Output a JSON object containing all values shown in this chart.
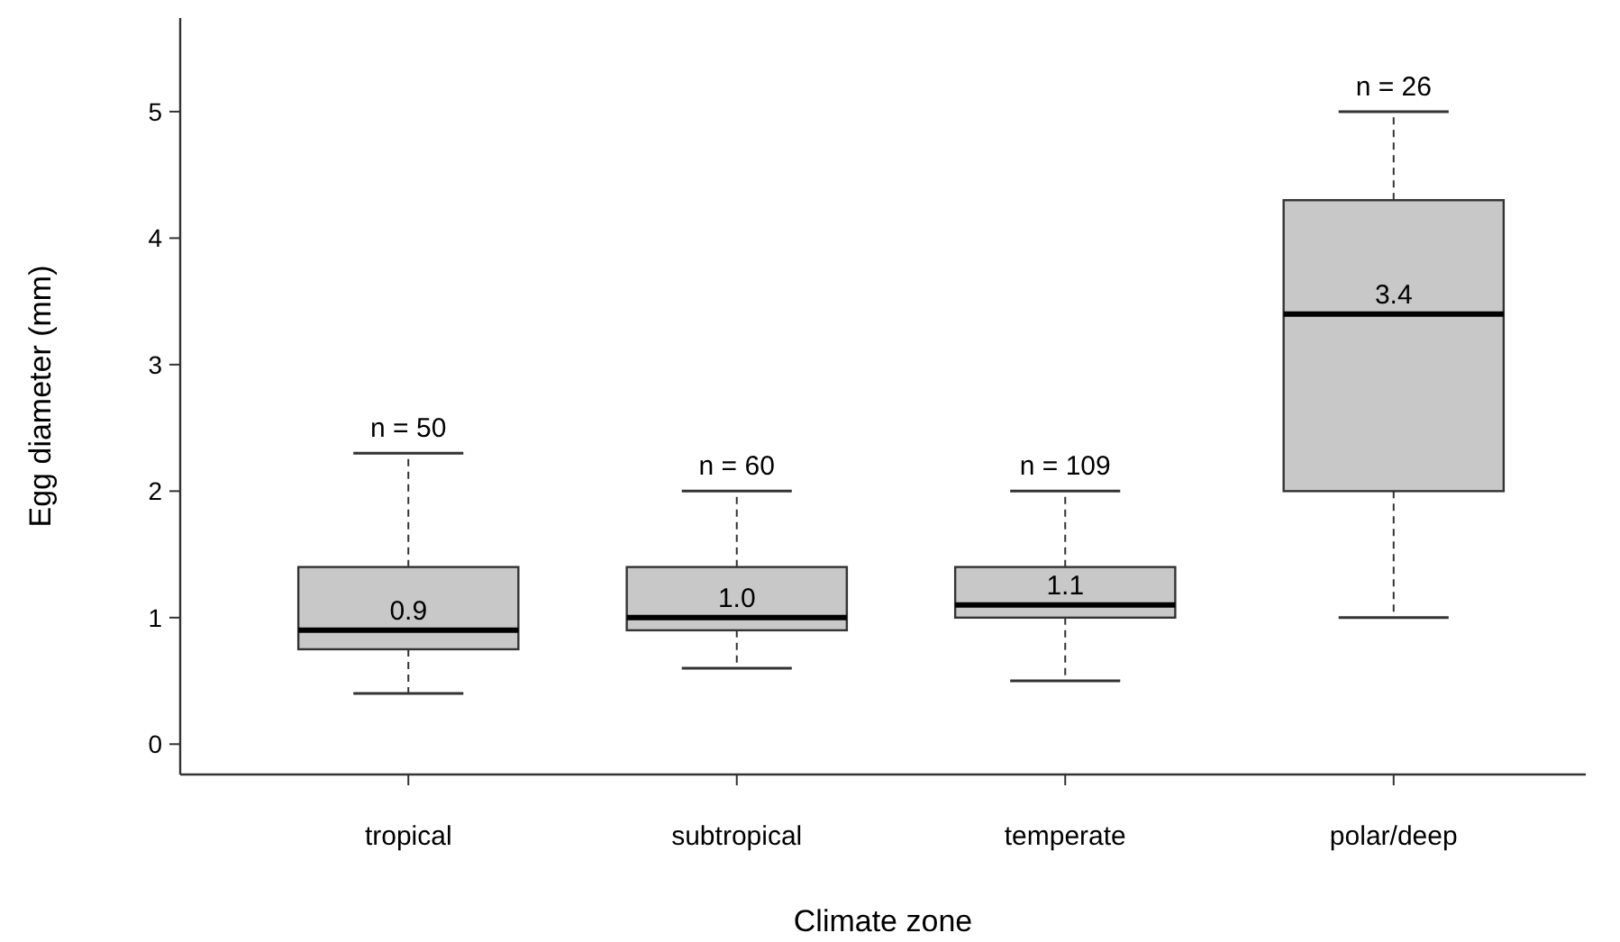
{
  "chart_data": {
    "type": "box",
    "xlabel": "Climate zone",
    "ylabel": "Egg diameter (mm)",
    "categories": [
      "tropical",
      "subtropical",
      "temperate",
      "polar/deep"
    ],
    "boxes": [
      {
        "low": 0.4,
        "q1": 0.75,
        "median": 0.9,
        "q3": 1.4,
        "high": 2.3
      },
      {
        "low": 0.6,
        "q1": 0.9,
        "median": 1.0,
        "q3": 1.4,
        "high": 2.0
      },
      {
        "low": 0.5,
        "q1": 1.0,
        "median": 1.1,
        "q3": 1.4,
        "high": 2.0
      },
      {
        "low": 1.0,
        "q1": 2.0,
        "median": 3.4,
        "q3": 4.3,
        "high": 5.0
      }
    ],
    "value_labels": [
      "0.9",
      "1.0",
      "1.1",
      "3.4"
    ],
    "color": "#c8c8c8",
    "line_style": "dashed",
    "annotations": [
      {
        "text": "n = 50",
        "x": "tropical",
        "y": 2.3
      },
      {
        "text": "n = 60",
        "x": "subtropical",
        "y": 2.0
      },
      {
        "text": "n = 109",
        "x": "temperate",
        "y": 2.0
      },
      {
        "text": "n = 26",
        "x": "polar/deep",
        "y": 5.0
      }
    ],
    "ylim": [
      -0.24,
      5.74
    ],
    "yticks": [
      0,
      1,
      2,
      3,
      4,
      5
    ],
    "grid": false
  }
}
